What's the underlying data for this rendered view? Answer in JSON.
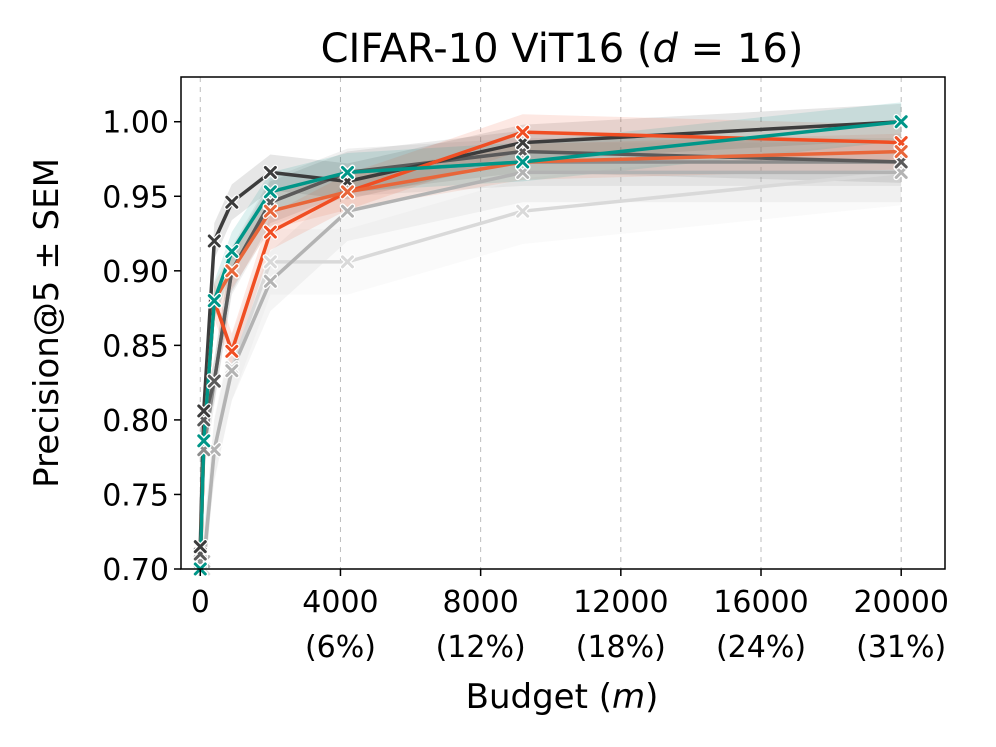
{
  "chart_data": {
    "type": "line",
    "title": {
      "main": "CIFAR-10 ViT16 (",
      "var": "d",
      "rest": " = 16)"
    },
    "xlabel": {
      "main": "Budget (",
      "var": "m",
      "rest": ")"
    },
    "ylabel": "Precision@5 ± SEM",
    "xlim": [
      -550,
      21250
    ],
    "ylim": [
      0.7,
      1.03
    ],
    "xticks": [
      {
        "value": 0,
        "label": "0",
        "pct": ""
      },
      {
        "value": 4000,
        "label": "4000",
        "pct": "(6%)"
      },
      {
        "value": 8000,
        "label": "8000",
        "pct": "(12%)"
      },
      {
        "value": 12000,
        "label": "12000",
        "pct": "(18%)"
      },
      {
        "value": 16000,
        "label": "16000",
        "pct": "(24%)"
      },
      {
        "value": 20000,
        "label": "20000",
        "pct": "(31%)"
      }
    ],
    "yticks": [
      0.7,
      0.75,
      0.8,
      0.85,
      0.9,
      0.95,
      1.0
    ],
    "ytick_labels": [
      "0.70",
      "0.75",
      "0.80",
      "0.85",
      "0.90",
      "0.95",
      "1.00"
    ],
    "grid_x": true,
    "grid_y": false,
    "x": [
      0,
      100,
      400,
      900,
      2000,
      4200,
      9200,
      20000
    ],
    "series": [
      {
        "color": "#d9d9d9",
        "sem": 0.022,
        "values": [
          0.7,
          0.7,
          0.78,
          0.835,
          0.906,
          0.906,
          0.94,
          0.966
        ]
      },
      {
        "color": "#b3b3b3",
        "sem": 0.02,
        "values": [
          0.7,
          0.705,
          0.78,
          0.833,
          0.893,
          0.94,
          0.966,
          0.966
        ]
      },
      {
        "color": "#8c8c8c",
        "sem": 0.016,
        "values": [
          0.705,
          0.78,
          0.826,
          0.9,
          0.946,
          0.966,
          0.973,
          0.973
        ]
      },
      {
        "color": "#5a5a5a",
        "sem": 0.014,
        "values": [
          0.71,
          0.8,
          0.826,
          0.9,
          0.946,
          0.966,
          0.98,
          0.973
        ]
      },
      {
        "color": "#3c3c3c",
        "sem": 0.012,
        "values": [
          0.715,
          0.806,
          0.92,
          0.946,
          0.966,
          0.96,
          0.986,
          1.0
        ]
      },
      {
        "color": "#f04e23",
        "sem": 0.012,
        "values": [
          0.7,
          0.786,
          0.88,
          0.846,
          0.926,
          0.953,
          0.993,
          0.986
        ]
      },
      {
        "color": "#e8663a",
        "sem": 0.012,
        "values": [
          0.7,
          0.786,
          0.88,
          0.9,
          0.94,
          0.953,
          0.973,
          0.98
        ]
      },
      {
        "color": "#009688",
        "sem": 0.013,
        "values": [
          0.7,
          0.786,
          0.88,
          0.913,
          0.953,
          0.966,
          0.973,
          1.0
        ]
      }
    ]
  }
}
